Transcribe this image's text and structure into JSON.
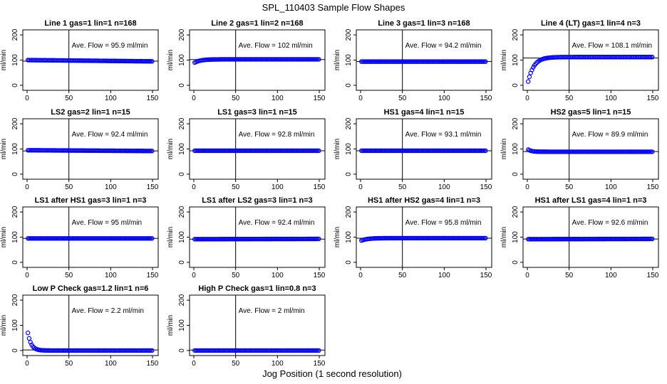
{
  "figure": {
    "title": "SPL_110403  Sample Flow Shapes",
    "xlabel": "Jog Position (1 second resolution)"
  },
  "colors": {
    "points": "#0000ff",
    "axes": "#000000"
  },
  "chart_data": [
    {
      "type": "scatter",
      "title": "Line 1 gas=1 lin=1 n=168",
      "ylabel": "ml/min",
      "xlim": [
        0,
        150
      ],
      "ylim": [
        -20,
        220
      ],
      "xticks": [
        "0",
        "50",
        "100",
        "150"
      ],
      "yticks": [
        "0",
        "100",
        "200"
      ],
      "annotation": "Ave. Flow =  95.9  ml/min",
      "mean_line": 95.9,
      "vline_x": 50,
      "shape": "flat",
      "y_start": 100,
      "y_end": 95
    },
    {
      "type": "scatter",
      "title": "Line 2 gas=1 lin=2 n=168",
      "ylabel": "ml/min",
      "xlim": [
        0,
        150
      ],
      "ylim": [
        -20,
        220
      ],
      "xticks": [
        "0",
        "50",
        "100",
        "150"
      ],
      "yticks": [
        "0",
        "100",
        "200"
      ],
      "annotation": "Ave. Flow =  102  ml/min",
      "mean_line": 102,
      "vline_x": 50,
      "shape": "rise",
      "y_start": 88,
      "y_end": 103
    },
    {
      "type": "scatter",
      "title": "Line 3 gas=1 lin=3 n=168",
      "ylabel": "ml/min",
      "xlim": [
        0,
        150
      ],
      "ylim": [
        -20,
        220
      ],
      "xticks": [
        "0",
        "50",
        "100",
        "150"
      ],
      "yticks": [
        "0",
        "100",
        "200"
      ],
      "annotation": "Ave. Flow =  94.2  ml/min",
      "mean_line": 94.2,
      "vline_x": 50,
      "shape": "flat",
      "y_start": 94,
      "y_end": 94
    },
    {
      "type": "scatter",
      "title": "Line 4 (LT) gas=1 lin=4 n=3",
      "ylabel": "ml/min",
      "xlim": [
        0,
        150
      ],
      "ylim": [
        -20,
        220
      ],
      "xticks": [
        "0",
        "50",
        "100",
        "150"
      ],
      "yticks": [
        "0",
        "100",
        "200"
      ],
      "annotation": "Ave. Flow =  108.1  ml/min",
      "mean_line": 108.1,
      "vline_x": 50,
      "shape": "rise",
      "y_start": 0,
      "y_end": 112
    },
    {
      "type": "scatter",
      "title": "LS2 gas=2 lin=1 n=15",
      "ylabel": "ml/min",
      "xlim": [
        0,
        150
      ],
      "ylim": [
        -20,
        220
      ],
      "xticks": [
        "0",
        "50",
        "100",
        "150"
      ],
      "yticks": [
        "0",
        "100",
        "200"
      ],
      "annotation": "Ave. Flow =  92.4  ml/min",
      "mean_line": 92.4,
      "vline_x": 50,
      "shape": "flat",
      "y_start": 95,
      "y_end": 92
    },
    {
      "type": "scatter",
      "title": "LS1 gas=3 lin=1 n=15",
      "ylabel": "ml/min",
      "xlim": [
        0,
        150
      ],
      "ylim": [
        -20,
        220
      ],
      "xticks": [
        "0",
        "50",
        "100",
        "150"
      ],
      "yticks": [
        "0",
        "100",
        "200"
      ],
      "annotation": "Ave. Flow =  92.8  ml/min",
      "mean_line": 92.8,
      "vline_x": 50,
      "shape": "flat",
      "y_start": 93,
      "y_end": 93
    },
    {
      "type": "scatter",
      "title": "HS1 gas=4 lin=1 n=15",
      "ylabel": "ml/min",
      "xlim": [
        0,
        150
      ],
      "ylim": [
        -20,
        220
      ],
      "xticks": [
        "0",
        "50",
        "100",
        "150"
      ],
      "yticks": [
        "0",
        "100",
        "200"
      ],
      "annotation": "Ave. Flow =  93.1  ml/min",
      "mean_line": 93.1,
      "vline_x": 50,
      "shape": "flat",
      "y_start": 93,
      "y_end": 93
    },
    {
      "type": "scatter",
      "title": "HS2 gas=5 lin=1 n=15",
      "ylabel": "ml/min",
      "xlim": [
        0,
        150
      ],
      "ylim": [
        -20,
        220
      ],
      "xticks": [
        "0",
        "50",
        "100",
        "150"
      ],
      "yticks": [
        "0",
        "100",
        "200"
      ],
      "annotation": "Ave. Flow =  89.9  ml/min",
      "mean_line": 89.9,
      "vline_x": 50,
      "shape": "fall",
      "y_start": 100,
      "y_end": 89
    },
    {
      "type": "scatter",
      "title": "LS1 after HS1 gas=3 lin=1 n=3",
      "ylabel": "ml/min",
      "xlim": [
        0,
        150
      ],
      "ylim": [
        -20,
        220
      ],
      "xticks": [
        "0",
        "50",
        "100",
        "150"
      ],
      "yticks": [
        "0",
        "100",
        "200"
      ],
      "annotation": "Ave. Flow =  95  ml/min",
      "mean_line": 95,
      "vline_x": 50,
      "shape": "flat",
      "y_start": 95,
      "y_end": 95
    },
    {
      "type": "scatter",
      "title": "LS1 after LS2 gas=3 lin=1 n=3",
      "ylabel": "ml/min",
      "xlim": [
        0,
        150
      ],
      "ylim": [
        -20,
        220
      ],
      "xticks": [
        "0",
        "50",
        "100",
        "150"
      ],
      "yticks": [
        "0",
        "100",
        "200"
      ],
      "annotation": "Ave. Flow =  92.4  ml/min",
      "mean_line": 92.4,
      "vline_x": 50,
      "shape": "flat",
      "y_start": 92,
      "y_end": 93
    },
    {
      "type": "scatter",
      "title": "HS1 after HS2 gas=4 lin=1 n=3",
      "ylabel": "ml/min",
      "xlim": [
        0,
        150
      ],
      "ylim": [
        -20,
        220
      ],
      "xticks": [
        "0",
        "50",
        "100",
        "150"
      ],
      "yticks": [
        "0",
        "100",
        "200"
      ],
      "annotation": "Ave. Flow =  95.8  ml/min",
      "mean_line": 95.8,
      "vline_x": 50,
      "shape": "rise",
      "y_start": 85,
      "y_end": 96
    },
    {
      "type": "scatter",
      "title": "HS1 after LS1 gas=4 lin=1 n=3",
      "ylabel": "ml/min",
      "xlim": [
        0,
        150
      ],
      "ylim": [
        -20,
        220
      ],
      "xticks": [
        "0",
        "50",
        "100",
        "150"
      ],
      "yticks": [
        "0",
        "100",
        "200"
      ],
      "annotation": "Ave. Flow =  92.6  ml/min",
      "mean_line": 92.6,
      "vline_x": 50,
      "shape": "flat",
      "y_start": 92,
      "y_end": 93
    },
    {
      "type": "scatter",
      "title": "Low P Check gas=1.2 lin=1 n=6",
      "ylabel": "ml/min",
      "xlim": [
        0,
        150
      ],
      "ylim": [
        -20,
        220
      ],
      "xticks": [
        "0",
        "50",
        "100",
        "150"
      ],
      "yticks": [
        "0",
        "100",
        "200"
      ],
      "annotation": "Ave. Flow =  2.2  ml/min",
      "mean_line": 2.2,
      "vline_x": 50,
      "shape": "decay",
      "y_start": 90,
      "y_end": 0
    },
    {
      "type": "scatter",
      "title": "High P Check gas=1 lin=0.8 n=3",
      "ylabel": "ml/min",
      "xlim": [
        0,
        150
      ],
      "ylim": [
        -20,
        220
      ],
      "xticks": [
        "0",
        "50",
        "100",
        "150"
      ],
      "yticks": [
        "0",
        "100",
        "200"
      ],
      "annotation": "Ave. Flow =  2  ml/min",
      "mean_line": 2,
      "vline_x": 50,
      "shape": "flat",
      "y_start": 0,
      "y_end": 0
    }
  ]
}
